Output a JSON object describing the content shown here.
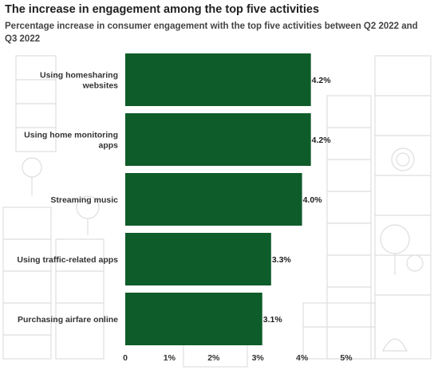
{
  "title": "The increase in engagement among the top five activities",
  "subtitle": "Percentage increase in consumer engagement with the top five activities between Q2 2022 and Q3 2022",
  "colors": {
    "bar": "#0e5c2a",
    "background_art": "#dcdcdc"
  },
  "chart_data": {
    "type": "bar",
    "orientation": "horizontal",
    "title": "The increase in engagement among the top five activities",
    "subtitle": "Percentage increase in consumer engagement with the top five activities between Q2 2022 and Q3 2022",
    "categories": [
      [
        "Using homesharing",
        "websites"
      ],
      [
        "Using home monitoring",
        "apps"
      ],
      [
        "Streaming music"
      ],
      [
        "Using traffic-related apps"
      ],
      [
        "Purchasing airfare online"
      ]
    ],
    "values": [
      4.2,
      4.2,
      4.0,
      3.3,
      3.1
    ],
    "value_labels": [
      "4.2%",
      "4.2%",
      "4.0%",
      "3.3%",
      "3.1%"
    ],
    "xlim": [
      0,
      5
    ],
    "x_ticks": [
      0,
      1,
      2,
      3,
      4,
      5
    ],
    "x_tick_labels": [
      "0",
      "1%",
      "2%",
      "3%",
      "4%",
      "5%"
    ],
    "xlabel": "",
    "ylabel": "",
    "grid": false,
    "legend": "none"
  }
}
